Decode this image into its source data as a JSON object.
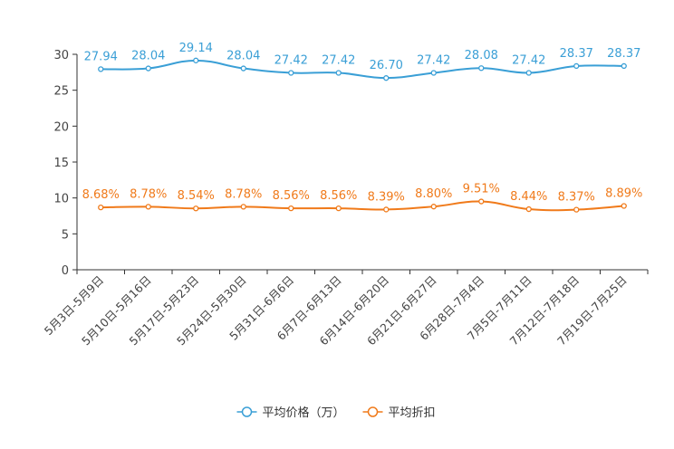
{
  "chart_data": {
    "type": "line",
    "title": "",
    "xlabel": "",
    "ylabel": "",
    "ylim": [
      0,
      30
    ],
    "yticks": [
      0,
      5,
      10,
      15,
      20,
      25,
      30
    ],
    "grid": false,
    "legend_position": "bottom-center",
    "categories": [
      "5月3日-5月9日",
      "5月10日-5月16日",
      "5月17日-5月23日",
      "5月24日-5月30日",
      "5月31日-6月6日",
      "6月7日-6月13日",
      "6月14日-6月20日",
      "6月21日-6月27日",
      "6月28日-7月4日",
      "7月5日-7月11日",
      "7月12日-7月18日",
      "7月19日-7月25日"
    ],
    "series": [
      {
        "name": "平均价格（万）",
        "color": "#3a9fd6",
        "values": [
          27.94,
          28.04,
          29.14,
          28.04,
          27.42,
          27.42,
          26.7,
          27.42,
          28.08,
          27.42,
          28.37,
          28.37
        ],
        "labels": [
          "27.94",
          "28.04",
          "29.14",
          "28.04",
          "27.42",
          "27.42",
          "26.70",
          "27.42",
          "28.08",
          "27.42",
          "28.37",
          "28.37"
        ]
      },
      {
        "name": "平均折扣",
        "color": "#f07a1a",
        "values": [
          8.68,
          8.78,
          8.54,
          8.78,
          8.56,
          8.56,
          8.39,
          8.8,
          9.51,
          8.44,
          8.37,
          8.89
        ],
        "labels": [
          "8.68%",
          "8.78%",
          "8.54%",
          "8.78%",
          "8.56%",
          "8.56%",
          "8.39%",
          "8.80%",
          "9.51%",
          "8.44%",
          "8.37%",
          "8.89%"
        ]
      }
    ]
  }
}
